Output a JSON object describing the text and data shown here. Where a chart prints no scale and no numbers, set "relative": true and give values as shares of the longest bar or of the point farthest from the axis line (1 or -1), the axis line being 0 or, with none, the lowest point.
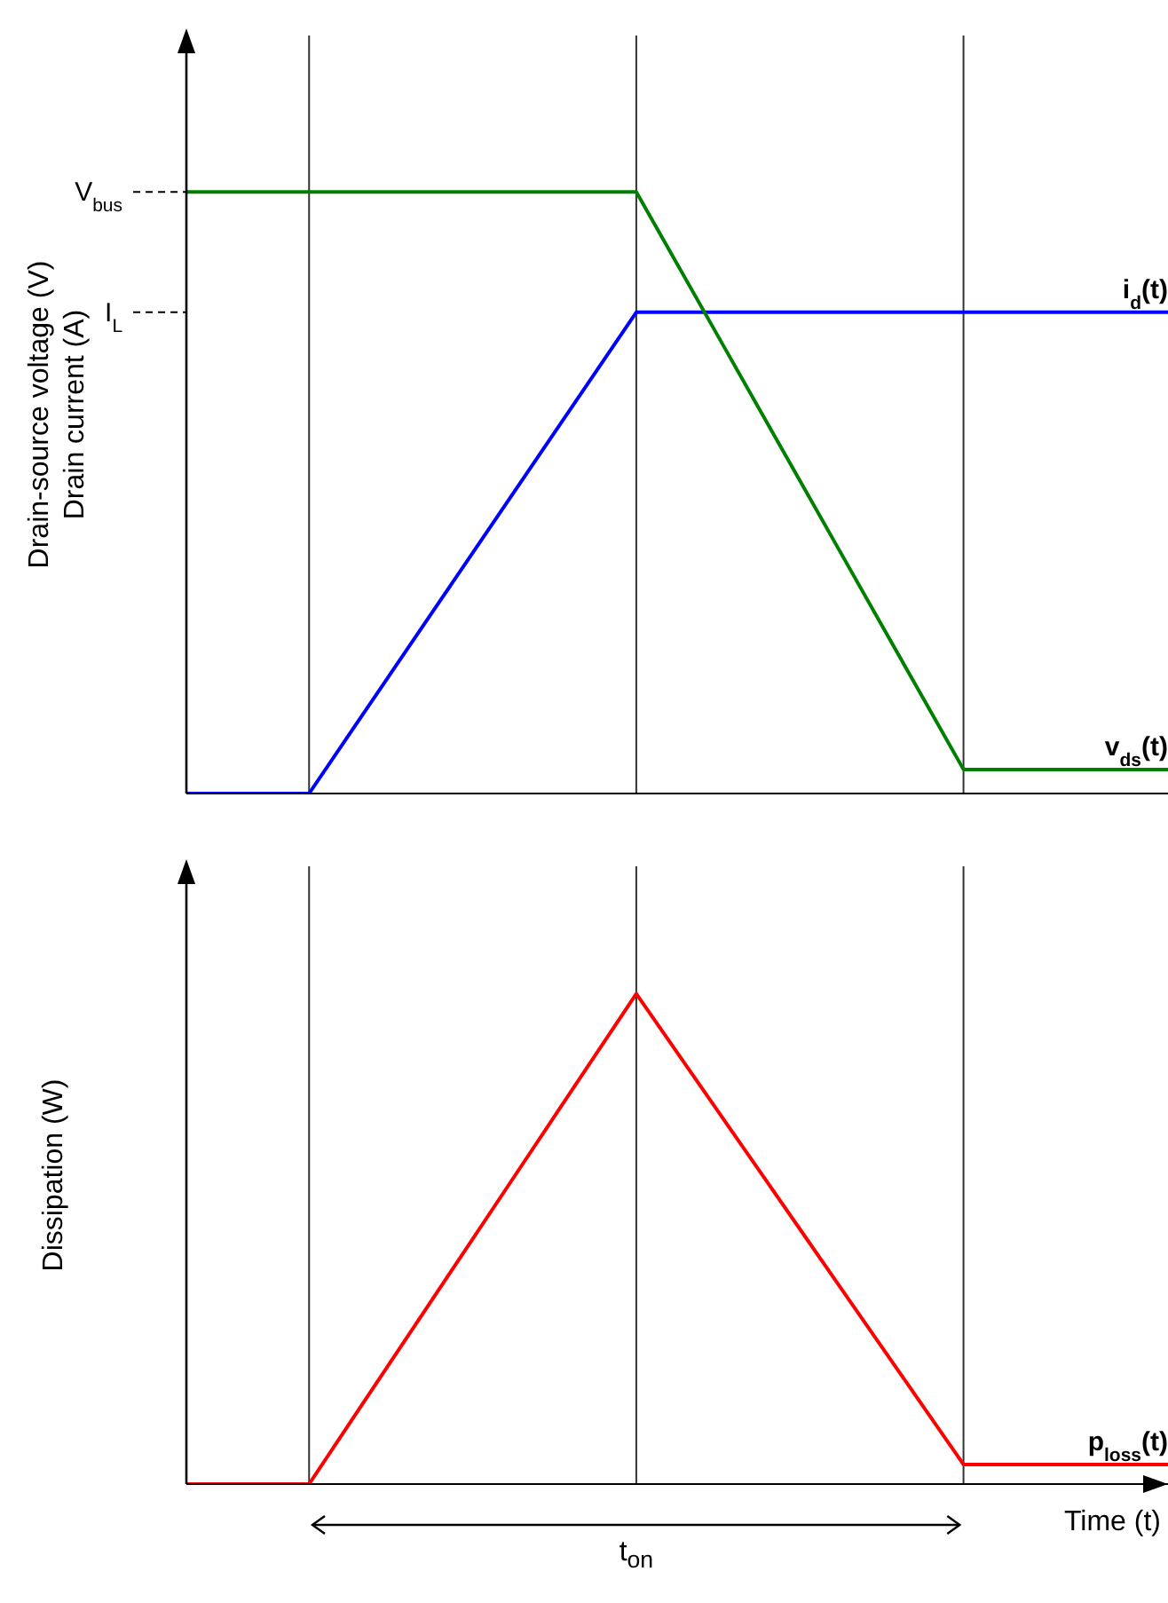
{
  "chart_data": [
    {
      "type": "line",
      "ylabel": "Drain-source voltage (V)\nDrain current (A)",
      "categories": [
        null,
        null,
        null,
        null,
        null,
        null,
        null,
        null,
        null,
        null,
        null,
        null,
        null,
        null,
        null,
        null,
        null,
        null,
        null,
        null,
        null,
        null,
        null,
        null,
        null
      ],
      "relative": true,
      "legend": false,
      "marker": "none",
      "line_style": "solid",
      "ref_lines": [
        {
          "axis": "y",
          "value": 1,
          "label": "V$_{bus}$",
          "line_style": "dashed",
          "color": "#000000"
        },
        {
          "axis": "y",
          "value": 0.8,
          "label": "I$_{L}$",
          "line_style": "dashed",
          "color": "#000000"
        }
      ],
      "grid": "x",
      "series": [
        {
          "name": "i$_{d}$(t)",
          "color": "#0000ff",
          "values": [
            0,
            0,
            0,
            0,
            0.1,
            0.2,
            0.3,
            0.4,
            0.5,
            0.6,
            0.7,
            0.8,
            0.8,
            0.8,
            0.8,
            0.8,
            0.8,
            0.8,
            0.8,
            0.8,
            0.8,
            0.8,
            0.8,
            0.8,
            0.8
          ]
        },
        {
          "name": "v$_{ds}$(t)",
          "color": "#008000",
          "values": [
            1,
            1,
            1,
            1,
            1,
            1,
            1,
            1,
            1,
            1,
            1,
            1,
            0.88,
            0.76,
            0.64,
            0.52,
            0.4,
            0.28,
            0.16,
            0.04,
            0.04,
            0.04,
            0.04,
            0.04,
            0.04
          ]
        }
      ]
    },
    {
      "type": "line",
      "ylabel": "Dissipation (W)",
      "xlabel": "Time (t)",
      "annotations": [
        "t$_{on}$"
      ],
      "categories": [
        null,
        null,
        null,
        null,
        null,
        null,
        null,
        null,
        null,
        null,
        null,
        null,
        null,
        null,
        null,
        null,
        null,
        null,
        null,
        null,
        null,
        null,
        null,
        null,
        null
      ],
      "relative": true,
      "legend": false,
      "marker": "none",
      "line_style": "solid",
      "grid": "x",
      "series": [
        {
          "name": "p$_{loss}$(t)",
          "color": "#ff0000",
          "values": [
            0,
            0,
            0,
            0,
            0.125,
            0.25,
            0.375,
            0.5,
            0.625,
            0.75,
            0.875,
            1,
            0.88,
            0.76,
            0.64,
            0.52,
            0.4,
            0.28,
            0.16,
            0.04,
            0.04,
            0.04,
            0.04,
            0.04,
            0.04
          ]
        }
      ]
    }
  ]
}
